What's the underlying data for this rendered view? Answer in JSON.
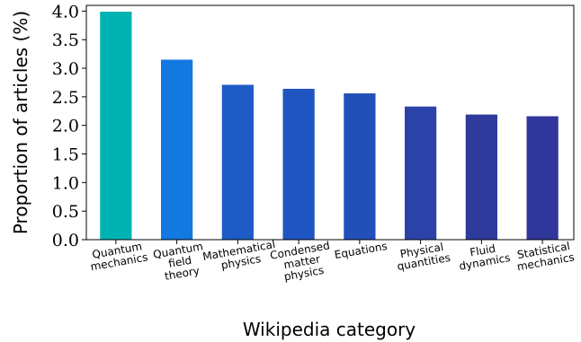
{
  "chart_data": {
    "type": "bar",
    "title": "",
    "xlabel": "Wikipedia category",
    "ylabel": "Proportion of articles (%)",
    "ylim": [
      0,
      4.1
    ],
    "yticks": [
      "0.0",
      "0.5",
      "1.0",
      "1.5",
      "2.0",
      "2.5",
      "3.0",
      "3.5",
      "4.0"
    ],
    "grid": false,
    "categories": [
      [
        "Quantum",
        "mechanics"
      ],
      [
        "Quantum",
        "field",
        "theory"
      ],
      [
        "Mathematical",
        "physics"
      ],
      [
        "Condensed",
        "matter",
        "physics"
      ],
      [
        "Equations"
      ],
      [
        "Physical",
        "quantities"
      ],
      [
        "Fluid",
        "dynamics"
      ],
      [
        "Statistical",
        "mechanics"
      ]
    ],
    "values": [
      3.99,
      3.15,
      2.71,
      2.64,
      2.56,
      2.33,
      2.19,
      2.16
    ],
    "colors": [
      "#00b3b3",
      "#1279e0",
      "#1e5bc6",
      "#1f55c0",
      "#2350b8",
      "#2b43a8",
      "#2f3a9d",
      "#31369a"
    ]
  }
}
